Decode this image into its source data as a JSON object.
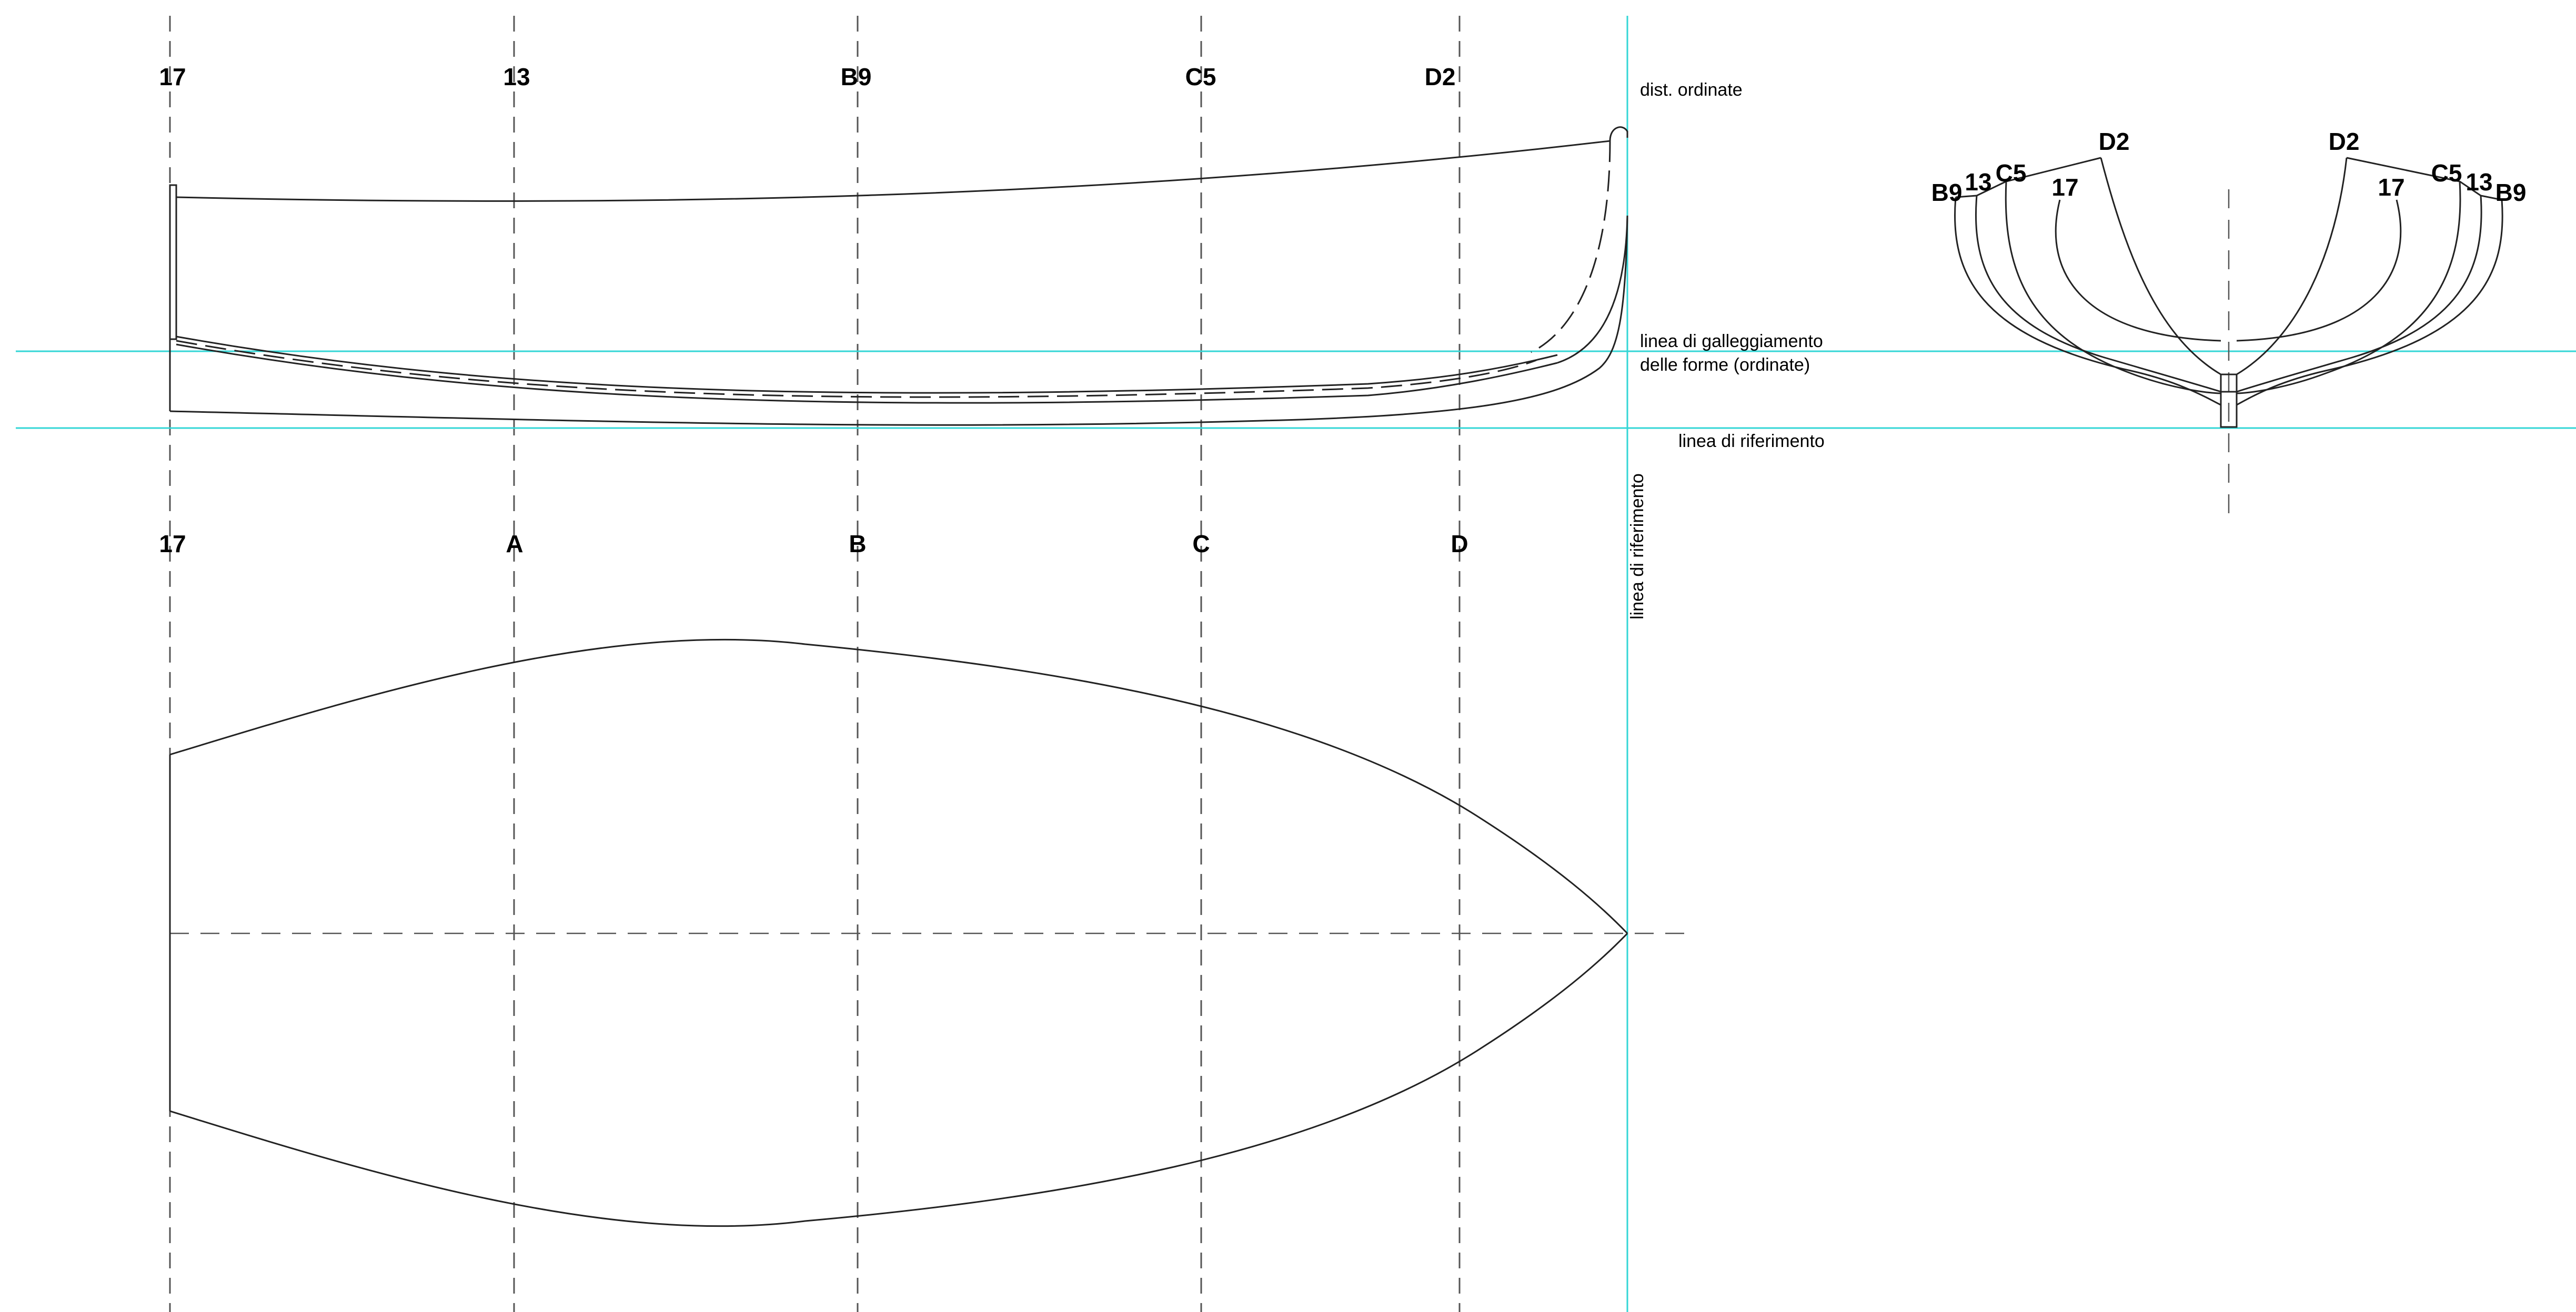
{
  "profile_stations": [
    "17",
    "13",
    "B9",
    "C5",
    "D2"
  ],
  "plan_stations": [
    "17",
    "A",
    "B",
    "C",
    "D"
  ],
  "labels": {
    "dist_ordinate": "dist. ordinate",
    "waterline_1": "linea di galleggiamento",
    "waterline_2": "delle forme (ordinate)",
    "reference_line": "linea di riferimento",
    "vertical_reference": "linea di riferimento"
  },
  "body_plan_left": [
    "B9",
    "13",
    "C5",
    "D2",
    "17"
  ],
  "body_plan_right": [
    "D2",
    "17",
    "C5",
    "13",
    "B9"
  ],
  "colors": {
    "guide_lines": "#33d6d6",
    "hull_lines": "#222222",
    "station_lines": "#555555"
  }
}
